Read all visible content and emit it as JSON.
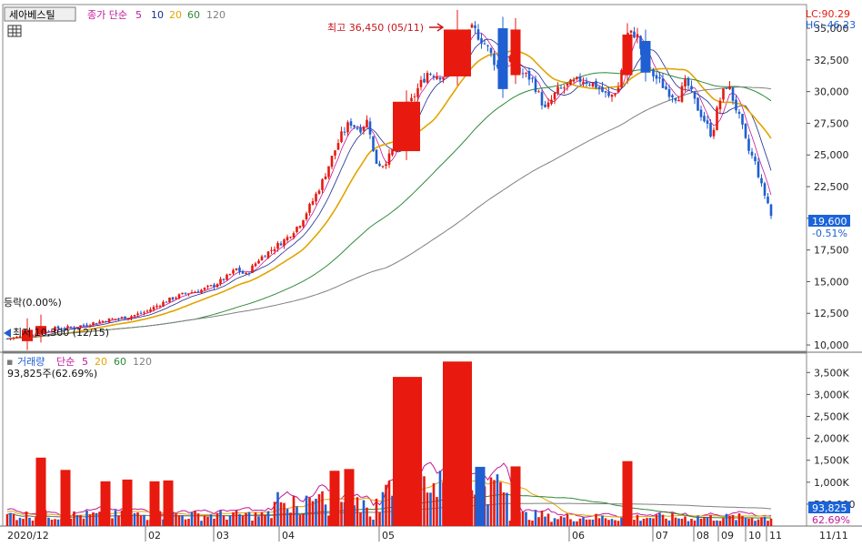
{
  "price_panel": {
    "stock_name": "세아베스틸",
    "ma_label": "종가 단순",
    "ma_periods": [
      "5",
      "10",
      "20",
      "60",
      "120"
    ],
    "lc_label": "LC:90.29",
    "hc_label": "HC:-46.23",
    "high_label": "최고 36,450 (05/11)",
    "low_label": "최저 10,300 (12/15)",
    "fluctuation_label": "등락(0.00%)",
    "current_price": "19,600",
    "current_change": "-0.51%",
    "y_ticks": [
      "35,000",
      "32,500",
      "30,000",
      "27,500",
      "25,000",
      "22,500",
      "20,000",
      "17,500",
      "15,000",
      "12,500",
      "10,000"
    ]
  },
  "volume_panel": {
    "title": "거래량",
    "ma_label": "단순",
    "ma_periods": [
      "5",
      "20",
      "60",
      "120"
    ],
    "current_volume_label": "93,825주(62.69%)",
    "current_volume": "93,825",
    "current_pct": "62.69%",
    "y_ticks": [
      "3,500K",
      "3,000K",
      "2,500K",
      "2,000K",
      "1,500K",
      "1,000K",
      "500,000"
    ]
  },
  "x_labels": [
    "2020/12",
    "02",
    "03",
    "04",
    "05",
    "06",
    "07",
    "08",
    "09",
    "10",
    "11",
    "11/11"
  ],
  "colors": {
    "up": "#e8190e",
    "down": "#1f5fd1",
    "ma5": "#c2189a",
    "ma10": "#1b2a8c",
    "ma20": "#e2a400",
    "ma60": "#2f8a3a",
    "ma120": "#808080",
    "axis_text": "#222222",
    "highlight": "#1b63d9"
  },
  "chart_data": {
    "type": "candlestick",
    "y_range": [
      9500,
      36800
    ],
    "anchor_candles": [
      {
        "date": "2020/12",
        "close": 10500
      },
      {
        "date": "04",
        "close": 15000
      },
      {
        "date": "05/11",
        "close": 36450,
        "note": "high"
      },
      {
        "date": "06",
        "close": 30500
      },
      {
        "date": "07",
        "close": 30800
      },
      {
        "date": "08",
        "close": 30000
      },
      {
        "date": "09",
        "close": 30500
      },
      {
        "date": "11/11",
        "close": 19600
      }
    ],
    "volume_range_k": [
      0,
      3900
    ]
  }
}
